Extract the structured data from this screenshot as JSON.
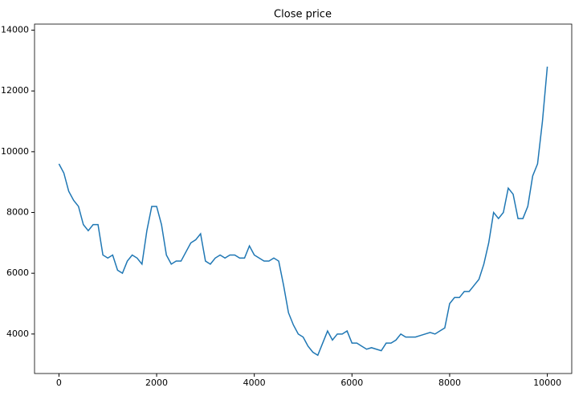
{
  "chart_data": {
    "type": "line",
    "title": "Close price",
    "x": [
      0,
      100,
      200,
      300,
      400,
      500,
      600,
      700,
      800,
      900,
      1000,
      1100,
      1200,
      1300,
      1400,
      1500,
      1600,
      1700,
      1800,
      1900,
      2000,
      2100,
      2200,
      2300,
      2400,
      2500,
      2600,
      2700,
      2800,
      2900,
      3000,
      3100,
      3200,
      3300,
      3400,
      3500,
      3600,
      3700,
      3800,
      3900,
      4000,
      4100,
      4200,
      4300,
      4400,
      4500,
      4600,
      4700,
      4800,
      4900,
      5000,
      5100,
      5200,
      5300,
      5400,
      5500,
      5600,
      5700,
      5800,
      5900,
      6000,
      6100,
      6200,
      6300,
      6400,
      6500,
      6600,
      6700,
      6800,
      6900,
      7000,
      7100,
      7200,
      7300,
      7400,
      7500,
      7600,
      7700,
      7800,
      7900,
      8000,
      8100,
      8200,
      8300,
      8400,
      8500,
      8600,
      8700,
      8800,
      8900,
      9000,
      9100,
      9200,
      9300,
      9400,
      9500,
      9600,
      9700,
      9800,
      9900,
      10000
    ],
    "series": [
      {
        "name": "Close",
        "color": "#1f77b4",
        "values": [
          9600,
          9300,
          8700,
          8400,
          8200,
          7600,
          7400,
          7600,
          7600,
          6600,
          6500,
          6600,
          6100,
          6000,
          6400,
          6600,
          6500,
          6300,
          7400,
          8200,
          8200,
          7600,
          6600,
          6300,
          6400,
          6400,
          6700,
          7000,
          7100,
          7300,
          6400,
          6300,
          6500,
          6600,
          6500,
          6600,
          6600,
          6500,
          6500,
          6900,
          6600,
          6500,
          6400,
          6400,
          6500,
          6400,
          5600,
          4700,
          4300,
          4000,
          3900,
          3600,
          3400,
          3300,
          3700,
          4100,
          3800,
          4000,
          4000,
          4100,
          3700,
          3700,
          3600,
          3500,
          3550,
          3500,
          3450,
          3700,
          3700,
          3800,
          4000,
          3900,
          3900,
          3900,
          3950,
          4000,
          4050,
          4000,
          4100,
          4200,
          5000,
          5200,
          5200,
          5400,
          5400,
          5600,
          5800,
          6300,
          7000,
          8000,
          7800,
          8000,
          8800,
          8600,
          7800,
          7800,
          8200,
          9200,
          9600,
          11000,
          12800
        ]
      }
    ],
    "xlim": [
      -500,
      10500
    ],
    "xticks": [
      0,
      2000,
      4000,
      6000,
      8000,
      10000
    ],
    "ylim": [
      2700,
      14200
    ],
    "yticks": [
      4000,
      6000,
      8000,
      10000,
      12000,
      14000
    ],
    "grid": false
  }
}
